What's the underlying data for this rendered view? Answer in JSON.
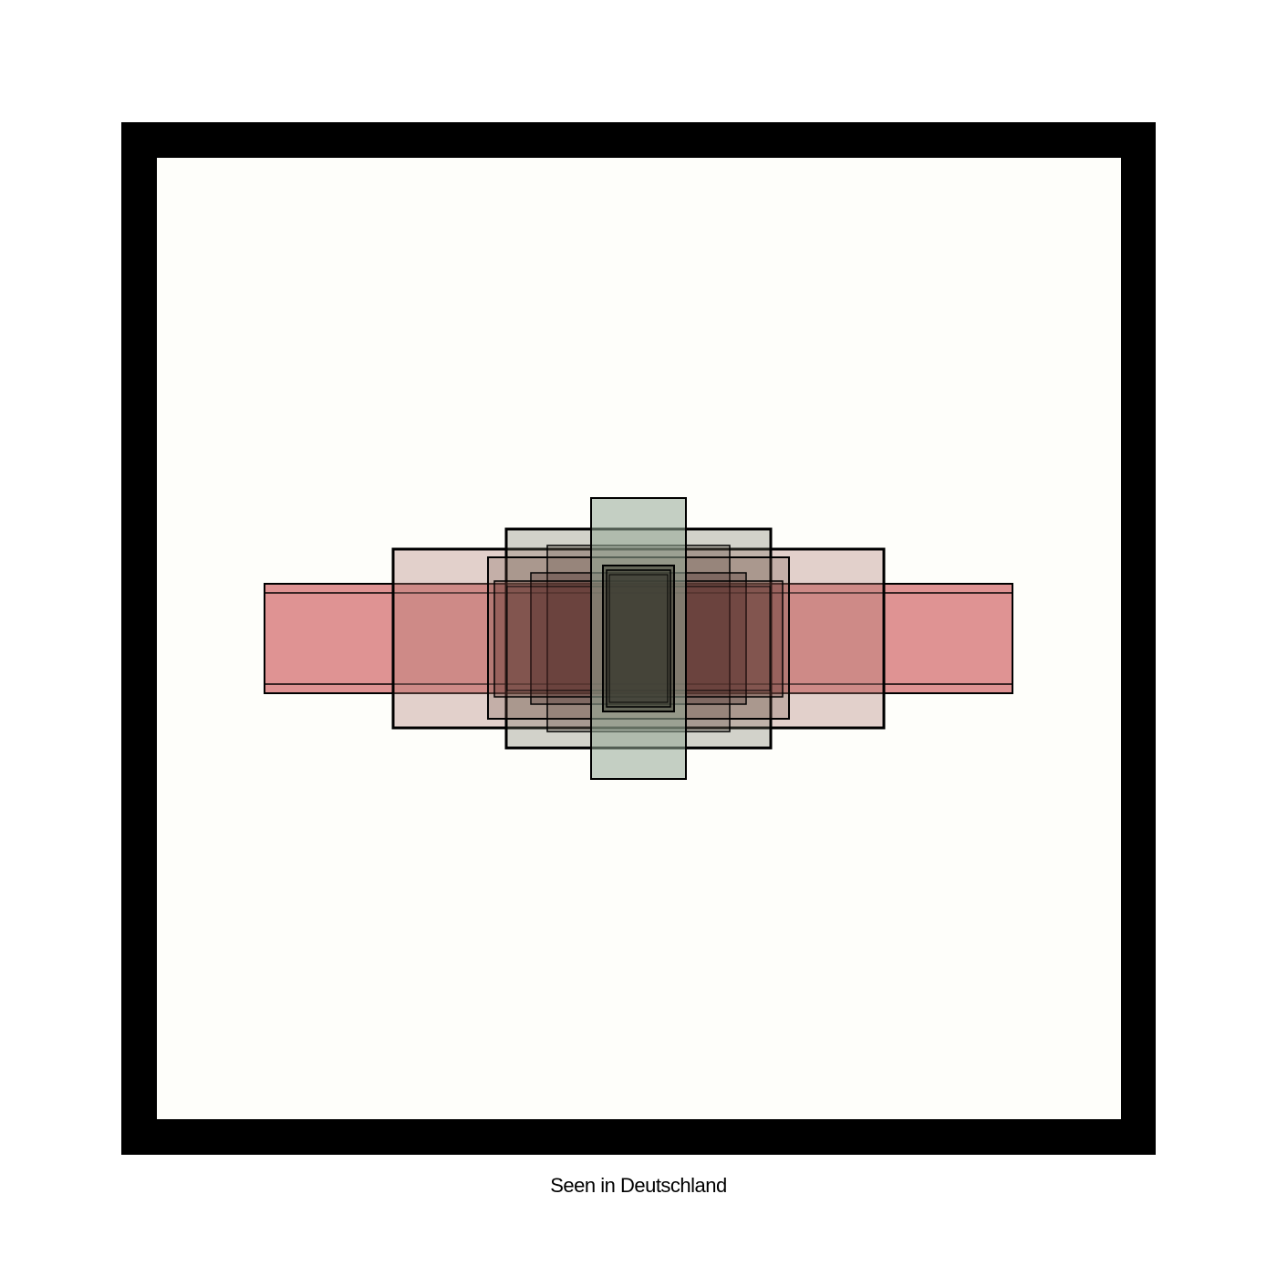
{
  "caption": "Seen in Deutschland",
  "colors": {
    "frame": "#000000",
    "canvas": "#fefefa",
    "red": "#d98080",
    "rose": "#c9a19a",
    "sage": "#93a896",
    "dark": "#3a3a30",
    "stroke": "#000000"
  }
}
